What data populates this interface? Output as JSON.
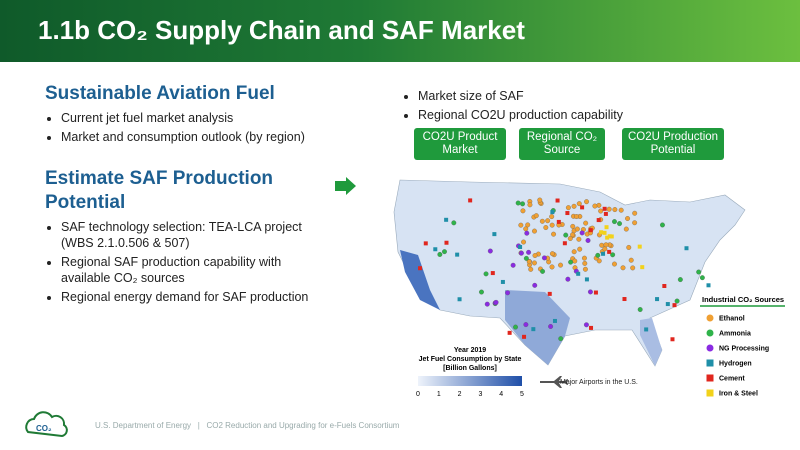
{
  "header": {
    "title": "1.1b CO₂ Supply Chain and SAF Market"
  },
  "left": {
    "sections": [
      {
        "heading": "Sustainable Aviation Fuel",
        "bullets": [
          "Current jet fuel market analysis",
          "Market and consumption outlook (by region)"
        ]
      },
      {
        "heading": "Estimate SAF Production Potential",
        "bullets": [
          "SAF technology selection: TEA-LCA project (WBS 2.1.0.506 & 507)",
          "Regional SAF production capability with available CO₂ sources",
          "Regional energy demand for SAF production"
        ]
      }
    ]
  },
  "right": {
    "bullets": [
      "Market size of SAF",
      "Regional CO2U production capability"
    ],
    "buttons": [
      "CO2U Product Market",
      "Regional CO₂ Source",
      "CO2U Production Potential"
    ]
  },
  "map": {
    "colorbar_title": [
      "Year 2019",
      "Jet Fuel Consumption by State",
      "[Billion Gallons]"
    ],
    "colorbar_ticks": [
      0,
      1,
      2,
      3,
      4,
      5
    ],
    "airports_label": "Major Airports in the U.S.",
    "legend": {
      "title": "Industrial CO₂ Sources",
      "items": [
        {
          "label": "Ethanol",
          "color": "#f0a033",
          "shape": "circle"
        },
        {
          "label": "Ammonia",
          "color": "#2fb34a",
          "shape": "circle"
        },
        {
          "label": "NG Processing",
          "color": "#8a2be2",
          "shape": "circle"
        },
        {
          "label": "Hydrogen",
          "color": "#1f8fa8",
          "shape": "square"
        },
        {
          "label": "Cement",
          "color": "#e0261e",
          "shape": "square"
        },
        {
          "label": "Iron & Steel",
          "color": "#f2d21a",
          "shape": "square"
        }
      ]
    }
  },
  "footer": {
    "logo": "CO₂",
    "organization": "U.S. Department of Energy",
    "separator": "|",
    "consortium": "CO2 Reduction and Upgrading for e-Fuels Consortium"
  }
}
